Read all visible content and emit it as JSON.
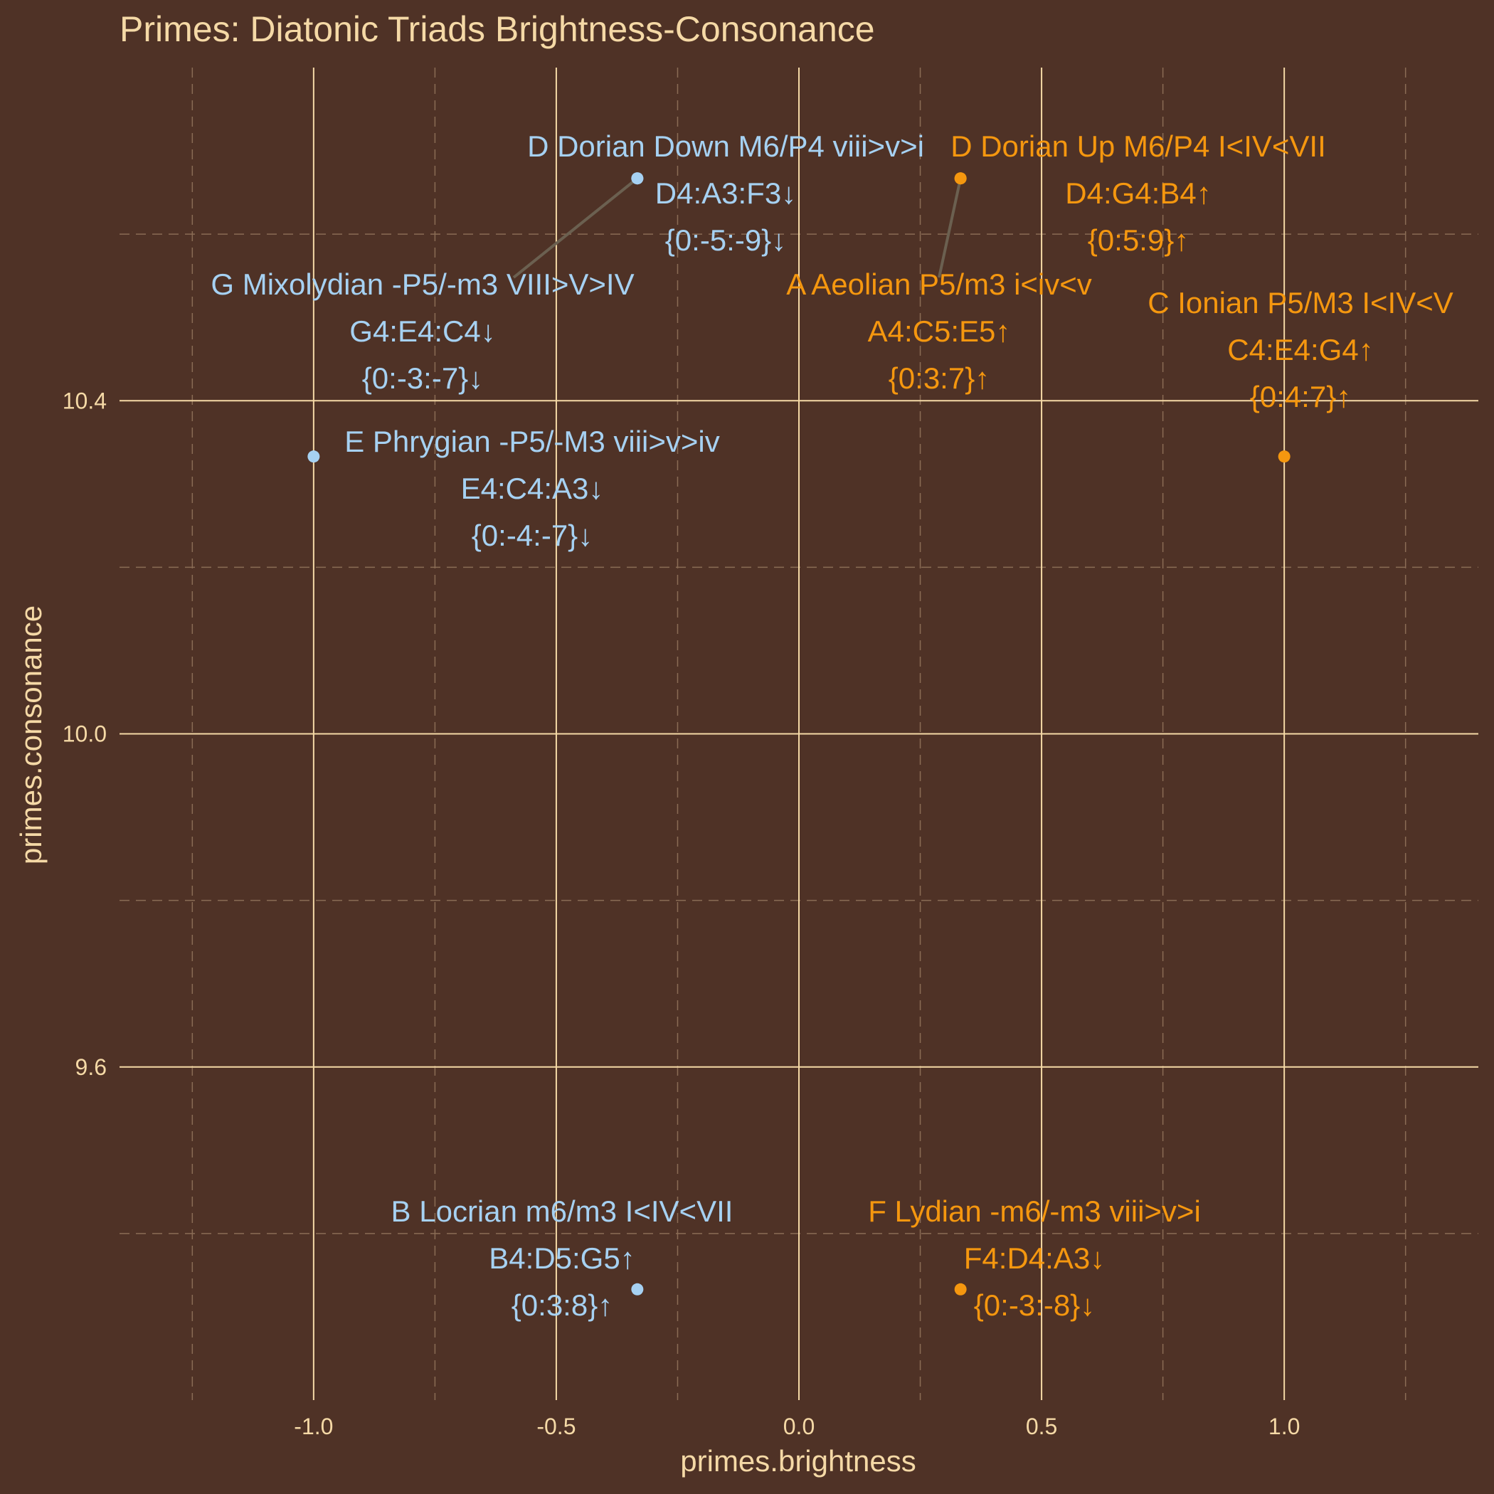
{
  "chart_data": {
    "type": "scatter",
    "title": "Primes: Diatonic Triads Brightness-Consonance",
    "xlabel": "primes.brightness",
    "ylabel": "primes.consonance",
    "xlim": [
      -1.4,
      1.4
    ],
    "ylim": [
      9.2,
      10.8
    ],
    "x_ticks": [
      -1.0,
      -0.5,
      0.0,
      0.5,
      1.0
    ],
    "x_tick_labels": [
      "-1.0",
      "-0.5",
      "0.0",
      "0.5",
      "1.0"
    ],
    "y_ticks": [
      9.6,
      10.0,
      10.4
    ],
    "y_tick_labels": [
      "9.6",
      "10.0",
      "10.4"
    ],
    "grid": true,
    "legend": "none",
    "colors": {
      "background": "#4f3226",
      "grid_major": "#f5d9a6",
      "grid_minor": "#8a6c55",
      "text": "#f5d9a6",
      "up": "#f5970f",
      "down": "#a6d1f2",
      "leader": "#6b6050"
    },
    "points": [
      {
        "x": 1.0,
        "y": 10.333,
        "group": "up",
        "lines": [
          "C Ionian P5/M3 I<IV<V",
          "C4:E4:G4↑",
          "{0:4:7}↑"
        ]
      },
      {
        "x": 0.333,
        "y": 10.667,
        "group": "up",
        "lines": [
          "D Dorian Up M6/P4 I<IV<VII",
          "D4:G4:B4↑",
          "{0:5:9}↑"
        ]
      },
      {
        "x": 0.333,
        "y": 10.667,
        "group": "up",
        "lines": [
          "A Aeolian P5/m3 i<iv<v",
          "A4:C5:E5↑",
          "{0:3:7}↑"
        ]
      },
      {
        "x": 0.333,
        "y": 9.333,
        "group": "up",
        "lines": [
          "F Lydian -m6/-m3 viii>v>i",
          "F4:D4:A3↓",
          "{0:-3:-8}↓"
        ]
      },
      {
        "x": -0.333,
        "y": 10.667,
        "group": "down",
        "lines": [
          "D Dorian Down M6/P4 viii>v>i",
          "D4:A3:F3↓",
          "{0:-5:-9}↓"
        ]
      },
      {
        "x": -0.333,
        "y": 10.667,
        "group": "down",
        "lines": [
          "G Mixolydian -P5/-m3 VIII>V>IV",
          "G4:E4:C4↓",
          "{0:-3:-7}↓"
        ]
      },
      {
        "x": -1.0,
        "y": 10.333,
        "group": "down",
        "lines": [
          "E Phrygian -P5/-M3 viii>v>iv",
          "E4:C4:A3↓",
          "{0:-4:-7}↓"
        ]
      },
      {
        "x": -0.333,
        "y": 9.333,
        "group": "down",
        "lines": [
          "B Locrian m6/m3 I<IV<VII",
          "B4:D5:G5↑",
          "{0:3:8}↑"
        ]
      }
    ]
  }
}
